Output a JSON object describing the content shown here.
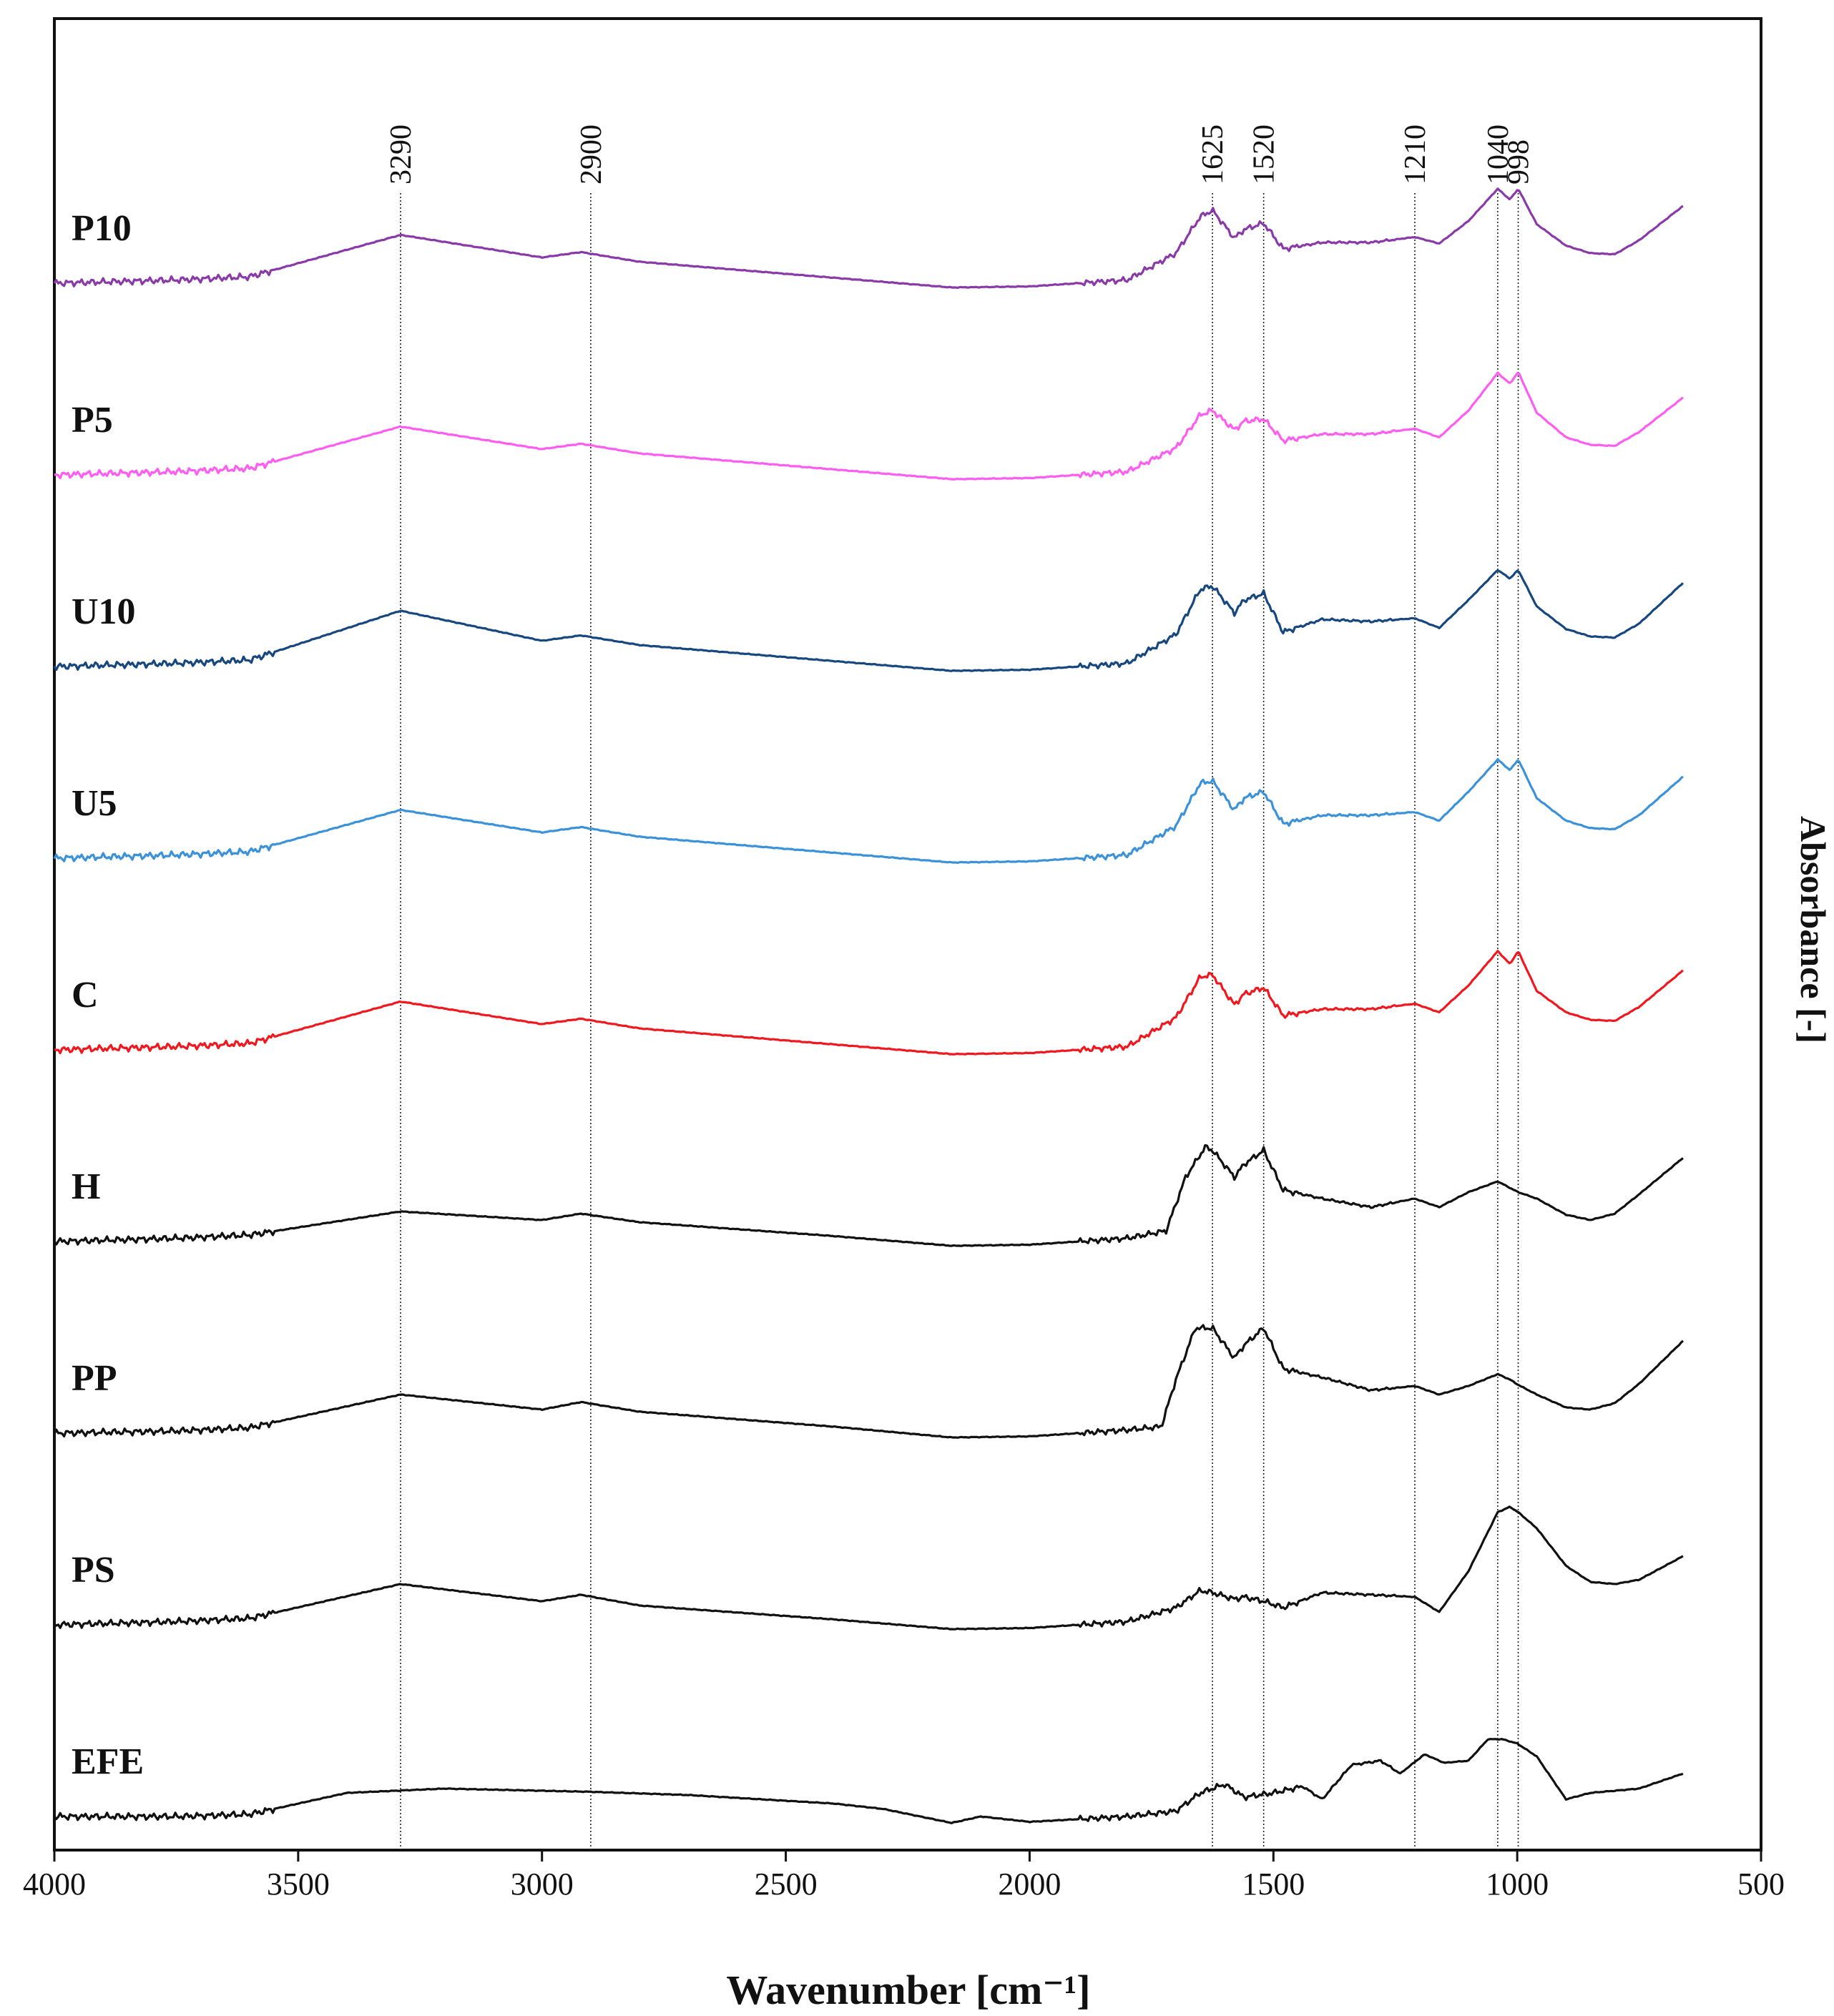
{
  "chart_data": {
    "type": "line",
    "title": "",
    "xlabel": "Wavenumber [cm⁻¹]",
    "ylabel": "Absorbance [-]",
    "xlim": [
      4000,
      500
    ],
    "x_reversed": true,
    "x_ticks": [
      4000,
      3500,
      3000,
      2500,
      2000,
      1500,
      1000,
      500
    ],
    "grid": false,
    "legend": "series labels at left of each trace",
    "peak_markers": [
      3290,
      2900,
      1625,
      1520,
      1210,
      1040,
      998
    ],
    "series": [
      {
        "name": "P10",
        "color": "#8a3aa8",
        "offset": 8,
        "x": [
          4000,
          3750,
          3600,
          3290,
          3000,
          2920,
          2800,
          2400,
          2160,
          2000,
          1800,
          1700,
          1650,
          1625,
          1580,
          1560,
          1520,
          1480,
          1400,
          1300,
          1210,
          1160,
          1100,
          1040,
          1015,
          998,
          960,
          900,
          850,
          800,
          750,
          660
        ],
        "y": [
          0.0,
          0.03,
          0.06,
          0.45,
          0.24,
          0.29,
          0.2,
          0.05,
          -0.04,
          -0.03,
          0.03,
          0.28,
          0.62,
          0.68,
          0.42,
          0.5,
          0.56,
          0.32,
          0.38,
          0.38,
          0.43,
          0.37,
          0.58,
          0.88,
          0.78,
          0.88,
          0.55,
          0.35,
          0.28,
          0.27,
          0.4,
          0.72
        ]
      },
      {
        "name": "P5",
        "color": "#ff5cf2",
        "offset": 7,
        "x": [
          4000,
          3750,
          3600,
          3290,
          3000,
          2920,
          2800,
          2400,
          2160,
          2000,
          1800,
          1700,
          1650,
          1625,
          1580,
          1560,
          1520,
          1480,
          1400,
          1300,
          1210,
          1160,
          1100,
          1040,
          1015,
          998,
          960,
          900,
          850,
          800,
          750,
          660
        ],
        "y": [
          0.0,
          0.03,
          0.06,
          0.45,
          0.24,
          0.29,
          0.2,
          0.05,
          -0.04,
          -0.03,
          0.03,
          0.25,
          0.56,
          0.6,
          0.42,
          0.5,
          0.52,
          0.32,
          0.38,
          0.38,
          0.43,
          0.35,
          0.6,
          0.95,
          0.85,
          0.96,
          0.58,
          0.35,
          0.28,
          0.27,
          0.4,
          0.72
        ]
      },
      {
        "name": "U10",
        "color": "#16477e",
        "offset": 6,
        "x": [
          4000,
          3750,
          3600,
          3290,
          3000,
          2920,
          2800,
          2400,
          2160,
          2000,
          1800,
          1700,
          1650,
          1625,
          1580,
          1560,
          1520,
          1480,
          1400,
          1300,
          1210,
          1160,
          1100,
          1040,
          1015,
          998,
          960,
          900,
          850,
          800,
          750,
          660
        ],
        "y": [
          0.0,
          0.03,
          0.06,
          0.52,
          0.24,
          0.29,
          0.2,
          0.05,
          -0.04,
          -0.03,
          0.03,
          0.3,
          0.72,
          0.75,
          0.5,
          0.62,
          0.68,
          0.32,
          0.44,
          0.42,
          0.45,
          0.36,
          0.62,
          0.9,
          0.82,
          0.9,
          0.56,
          0.35,
          0.28,
          0.27,
          0.4,
          0.78
        ]
      },
      {
        "name": "U5",
        "color": "#3b92d9",
        "offset": 5,
        "x": [
          4000,
          3750,
          3600,
          3290,
          3000,
          2920,
          2800,
          2400,
          2160,
          2000,
          1800,
          1700,
          1650,
          1625,
          1580,
          1560,
          1520,
          1480,
          1400,
          1300,
          1210,
          1160,
          1100,
          1040,
          1015,
          998,
          960,
          900,
          850,
          800,
          750,
          660
        ],
        "y": [
          0.0,
          0.03,
          0.06,
          0.45,
          0.24,
          0.29,
          0.2,
          0.05,
          -0.04,
          -0.03,
          0.03,
          0.3,
          0.7,
          0.72,
          0.45,
          0.56,
          0.62,
          0.32,
          0.4,
          0.4,
          0.43,
          0.35,
          0.62,
          0.92,
          0.82,
          0.92,
          0.56,
          0.35,
          0.28,
          0.27,
          0.4,
          0.76
        ]
      },
      {
        "name": "C",
        "color": "#f0181e",
        "offset": 4,
        "x": [
          4000,
          3750,
          3600,
          3290,
          3000,
          2920,
          2800,
          2400,
          2160,
          2000,
          1800,
          1700,
          1650,
          1625,
          1580,
          1560,
          1520,
          1480,
          1400,
          1300,
          1210,
          1160,
          1100,
          1040,
          1015,
          998,
          960,
          900,
          850,
          800,
          750,
          660
        ],
        "y": [
          0.0,
          0.03,
          0.06,
          0.45,
          0.24,
          0.29,
          0.2,
          0.05,
          -0.04,
          -0.03,
          0.03,
          0.3,
          0.68,
          0.7,
          0.42,
          0.52,
          0.58,
          0.32,
          0.38,
          0.38,
          0.43,
          0.35,
          0.6,
          0.92,
          0.8,
          0.92,
          0.55,
          0.35,
          0.28,
          0.27,
          0.4,
          0.74
        ]
      },
      {
        "name": "H",
        "color": "#111111",
        "offset": 3,
        "x": [
          4000,
          3750,
          3600,
          3290,
          3000,
          2920,
          2800,
          2400,
          2160,
          2000,
          1800,
          1720,
          1680,
          1640,
          1625,
          1580,
          1560,
          1520,
          1480,
          1400,
          1300,
          1210,
          1160,
          1100,
          1040,
          1015,
          998,
          960,
          900,
          850,
          800,
          750,
          660
        ],
        "y": [
          0.0,
          0.03,
          0.06,
          0.28,
          0.2,
          0.26,
          0.18,
          0.05,
          -0.04,
          -0.03,
          0.03,
          0.1,
          0.6,
          0.88,
          0.85,
          0.6,
          0.72,
          0.85,
          0.48,
          0.4,
          0.32,
          0.4,
          0.32,
          0.46,
          0.56,
          0.5,
          0.46,
          0.4,
          0.25,
          0.2,
          0.26,
          0.44,
          0.78
        ]
      },
      {
        "name": "PP",
        "color": "#111111",
        "offset": 2,
        "x": [
          4000,
          3750,
          3600,
          3290,
          3000,
          2920,
          2800,
          2400,
          2160,
          2000,
          1800,
          1730,
          1700,
          1660,
          1625,
          1580,
          1560,
          1520,
          1480,
          1400,
          1300,
          1210,
          1160,
          1100,
          1040,
          1015,
          998,
          960,
          900,
          850,
          800,
          750,
          660
        ],
        "y": [
          0.0,
          0.02,
          0.05,
          0.36,
          0.22,
          0.29,
          0.2,
          0.06,
          -0.04,
          -0.03,
          0.03,
          0.06,
          0.5,
          0.98,
          0.98,
          0.7,
          0.82,
          0.98,
          0.6,
          0.52,
          0.4,
          0.44,
          0.36,
          0.44,
          0.55,
          0.5,
          0.45,
          0.36,
          0.24,
          0.22,
          0.28,
          0.46,
          0.86
        ]
      },
      {
        "name": "PS",
        "color": "#111111",
        "offset": 1,
        "x": [
          4000,
          3750,
          3600,
          3290,
          3000,
          2920,
          2800,
          2400,
          2160,
          2000,
          1800,
          1700,
          1650,
          1625,
          1580,
          1560,
          1520,
          1480,
          1400,
          1300,
          1210,
          1160,
          1100,
          1040,
          1015,
          998,
          960,
          900,
          850,
          800,
          750,
          660
        ],
        "y": [
          0.0,
          0.03,
          0.06,
          0.38,
          0.22,
          0.28,
          0.18,
          0.05,
          -0.04,
          -0.03,
          0.03,
          0.16,
          0.32,
          0.3,
          0.24,
          0.26,
          0.22,
          0.16,
          0.3,
          0.28,
          0.26,
          0.12,
          0.5,
          1.05,
          1.1,
          1.05,
          0.9,
          0.55,
          0.4,
          0.38,
          0.42,
          0.64
        ]
      },
      {
        "name": "EFE",
        "color": "#111111",
        "offset": 0,
        "x": [
          4000,
          3750,
          3600,
          3400,
          3200,
          3000,
          2900,
          2700,
          2400,
          2300,
          2160,
          2100,
          2000,
          1800,
          1700,
          1650,
          1600,
          1560,
          1500,
          1440,
          1400,
          1340,
          1280,
          1240,
          1190,
          1150,
          1100,
          1060,
          1030,
          1000,
          960,
          900,
          850,
          800,
          750,
          660
        ],
        "y": [
          0.0,
          0.0,
          0.02,
          0.22,
          0.26,
          0.24,
          0.23,
          0.2,
          0.12,
          0.07,
          -0.06,
          0.0,
          -0.05,
          0.0,
          0.05,
          0.22,
          0.3,
          0.18,
          0.22,
          0.28,
          0.16,
          0.48,
          0.52,
          0.4,
          0.58,
          0.5,
          0.52,
          0.72,
          0.72,
          0.68,
          0.56,
          0.16,
          0.22,
          0.24,
          0.26,
          0.4
        ]
      }
    ]
  }
}
